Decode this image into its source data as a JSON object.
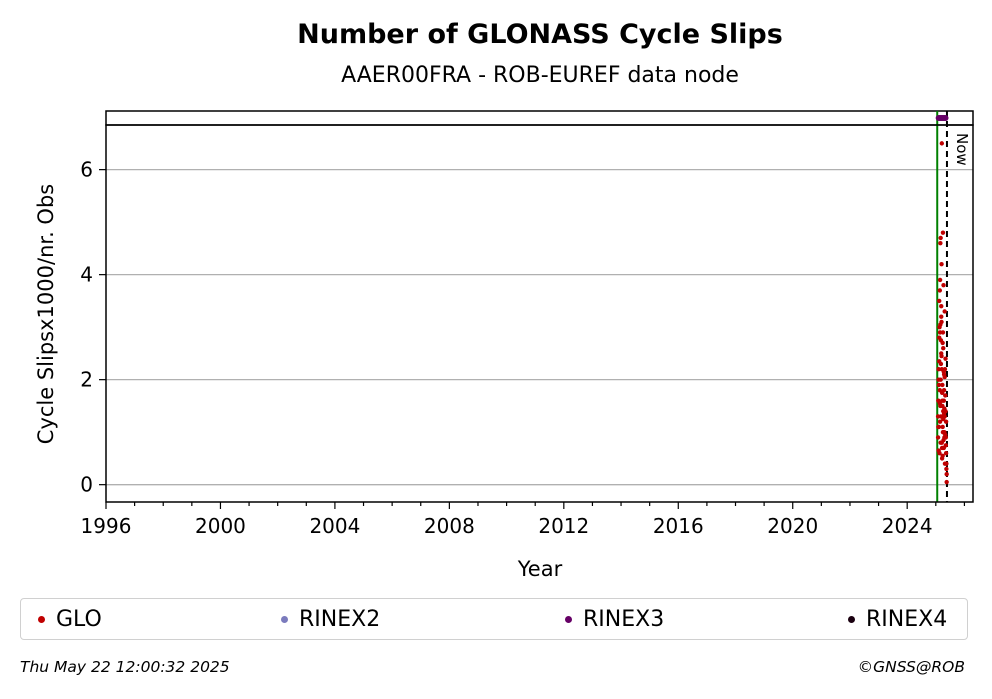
{
  "chart_data": {
    "type": "scatter",
    "title": "Number of GLONASS Cycle Slips",
    "subtitle": "AAER00FRA - ROB-EUREF data node",
    "xlabel": "Year",
    "ylabel": "Cycle Slipsx1000/nr. Obs",
    "xlim": [
      1996,
      2026.3
    ],
    "ylim": [
      -0.33,
      6.85
    ],
    "xticks": [
      1996,
      2000,
      2004,
      2008,
      2012,
      2016,
      2020,
      2024
    ],
    "yticks": [
      0,
      2,
      4,
      6
    ],
    "grid": "horizontal",
    "now_label": "Now",
    "now_x": 2025.39,
    "start_x": 2025.05,
    "legend_position": "bottom",
    "series": [
      {
        "name": "GLO",
        "color": "#c00000",
        "x": [
          2025.08,
          2025.09,
          2025.1,
          2025.11,
          2025.12,
          2025.13,
          2025.14,
          2025.15,
          2025.16,
          2025.17,
          2025.18,
          2025.19,
          2025.2,
          2025.21,
          2025.22,
          2025.23,
          2025.24,
          2025.25,
          2025.26,
          2025.27,
          2025.28,
          2025.29,
          2025.3,
          2025.31,
          2025.32,
          2025.33,
          2025.34,
          2025.35,
          2025.36,
          2025.37,
          2025.38,
          2025.08,
          2025.1,
          2025.12,
          2025.14,
          2025.16,
          2025.18,
          2025.2,
          2025.22,
          2025.24,
          2025.26,
          2025.28,
          2025.3,
          2025.32,
          2025.34,
          2025.36,
          2025.38,
          2025.09,
          2025.11,
          2025.13,
          2025.15,
          2025.17,
          2025.19,
          2025.21,
          2025.23,
          2025.25,
          2025.27,
          2025.29,
          2025.31,
          2025.33,
          2025.35,
          2025.37,
          2025.15,
          2025.17,
          2025.19,
          2025.21,
          2025.23,
          2025.25,
          2025.27,
          2025.29,
          2025.31,
          2025.2,
          2025.22,
          2025.24,
          2025.26,
          2025.28,
          2025.3,
          2025.18,
          2025.16,
          2025.14,
          2025.12,
          2025.1
        ],
        "y": [
          0.9,
          1.6,
          2.2,
          1.1,
          3.5,
          0.6,
          1.8,
          2.9,
          4.6,
          0.8,
          1.3,
          2.5,
          3.1,
          6.5,
          0.5,
          1.9,
          2.7,
          4.8,
          1.4,
          3.8,
          0.7,
          2.1,
          1.0,
          3.3,
          0.4,
          1.7,
          2.4,
          0.9,
          1.2,
          0.3,
          0.05,
          1.3,
          2.0,
          2.8,
          3.7,
          1.5,
          2.3,
          4.2,
          0.7,
          1.1,
          2.6,
          1.6,
          0.9,
          2.2,
          1.4,
          0.6,
          0.2,
          1.1,
          1.9,
          3.0,
          1.2,
          2.0,
          3.4,
          0.8,
          1.5,
          2.9,
          1.0,
          1.8,
          1.3,
          0.95,
          0.75,
          0.4,
          3.9,
          4.7,
          3.2,
          2.2,
          1.6,
          1.0,
          0.85,
          1.35,
          2.05,
          2.45,
          1.75,
          0.55,
          1.25,
          2.15,
          1.45,
          2.75,
          3.05,
          1.55,
          2.35,
          0.65
        ]
      },
      {
        "name": "RINEX2",
        "color": "#7b7bbd",
        "x": [],
        "y": []
      },
      {
        "name": "RINEX3",
        "color": "#660066",
        "x": [
          2025.1,
          2025.14,
          2025.18,
          2025.22,
          2025.26,
          2025.3,
          2025.34
        ],
        "y": [
          7.0,
          7.0,
          7.0,
          7.0,
          7.0,
          7.0,
          7.0
        ]
      },
      {
        "name": "RINEX4",
        "color": "#1a0010",
        "x": [],
        "y": []
      }
    ]
  },
  "footer": {
    "timestamp": "Thu May 22 12:00:32 2025",
    "credit": "©GNSS@ROB"
  }
}
